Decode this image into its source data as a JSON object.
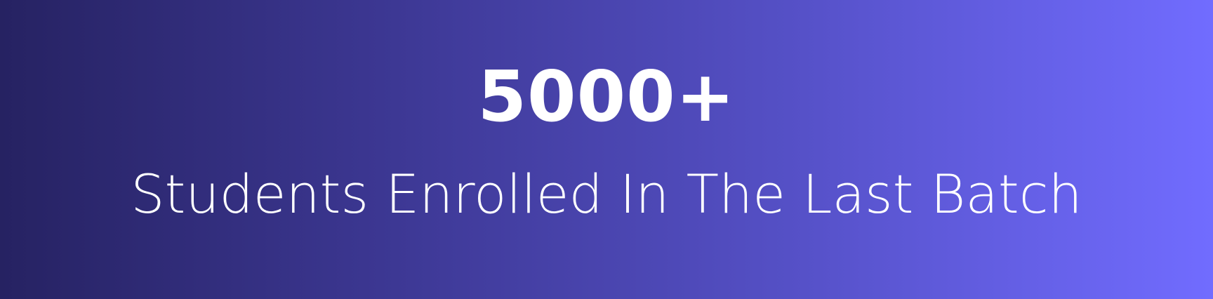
{
  "banner": {
    "value": "5000+",
    "caption": "Students Enrolled In The Last Batch",
    "colors": {
      "gradient_start": "#262262",
      "gradient_end": "#716cff",
      "text": "#ffffff"
    }
  }
}
